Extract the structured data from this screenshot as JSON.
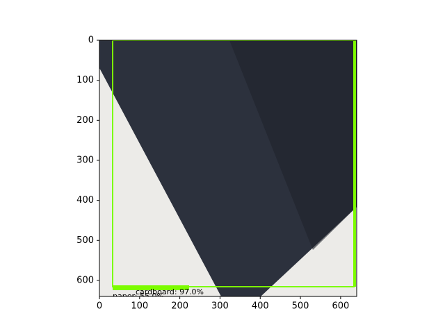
{
  "chart_data": {
    "type": "image",
    "xlim": [
      0,
      640
    ],
    "ylim": [
      640,
      0
    ],
    "xticks": [
      0,
      100,
      200,
      300,
      400,
      500,
      600
    ],
    "yticks": [
      0,
      100,
      200,
      300,
      400,
      500,
      600
    ],
    "annotations": [
      "cardboard: 97.0%",
      "paper: 55.0%"
    ],
    "box_color": "#7cfc00"
  }
}
